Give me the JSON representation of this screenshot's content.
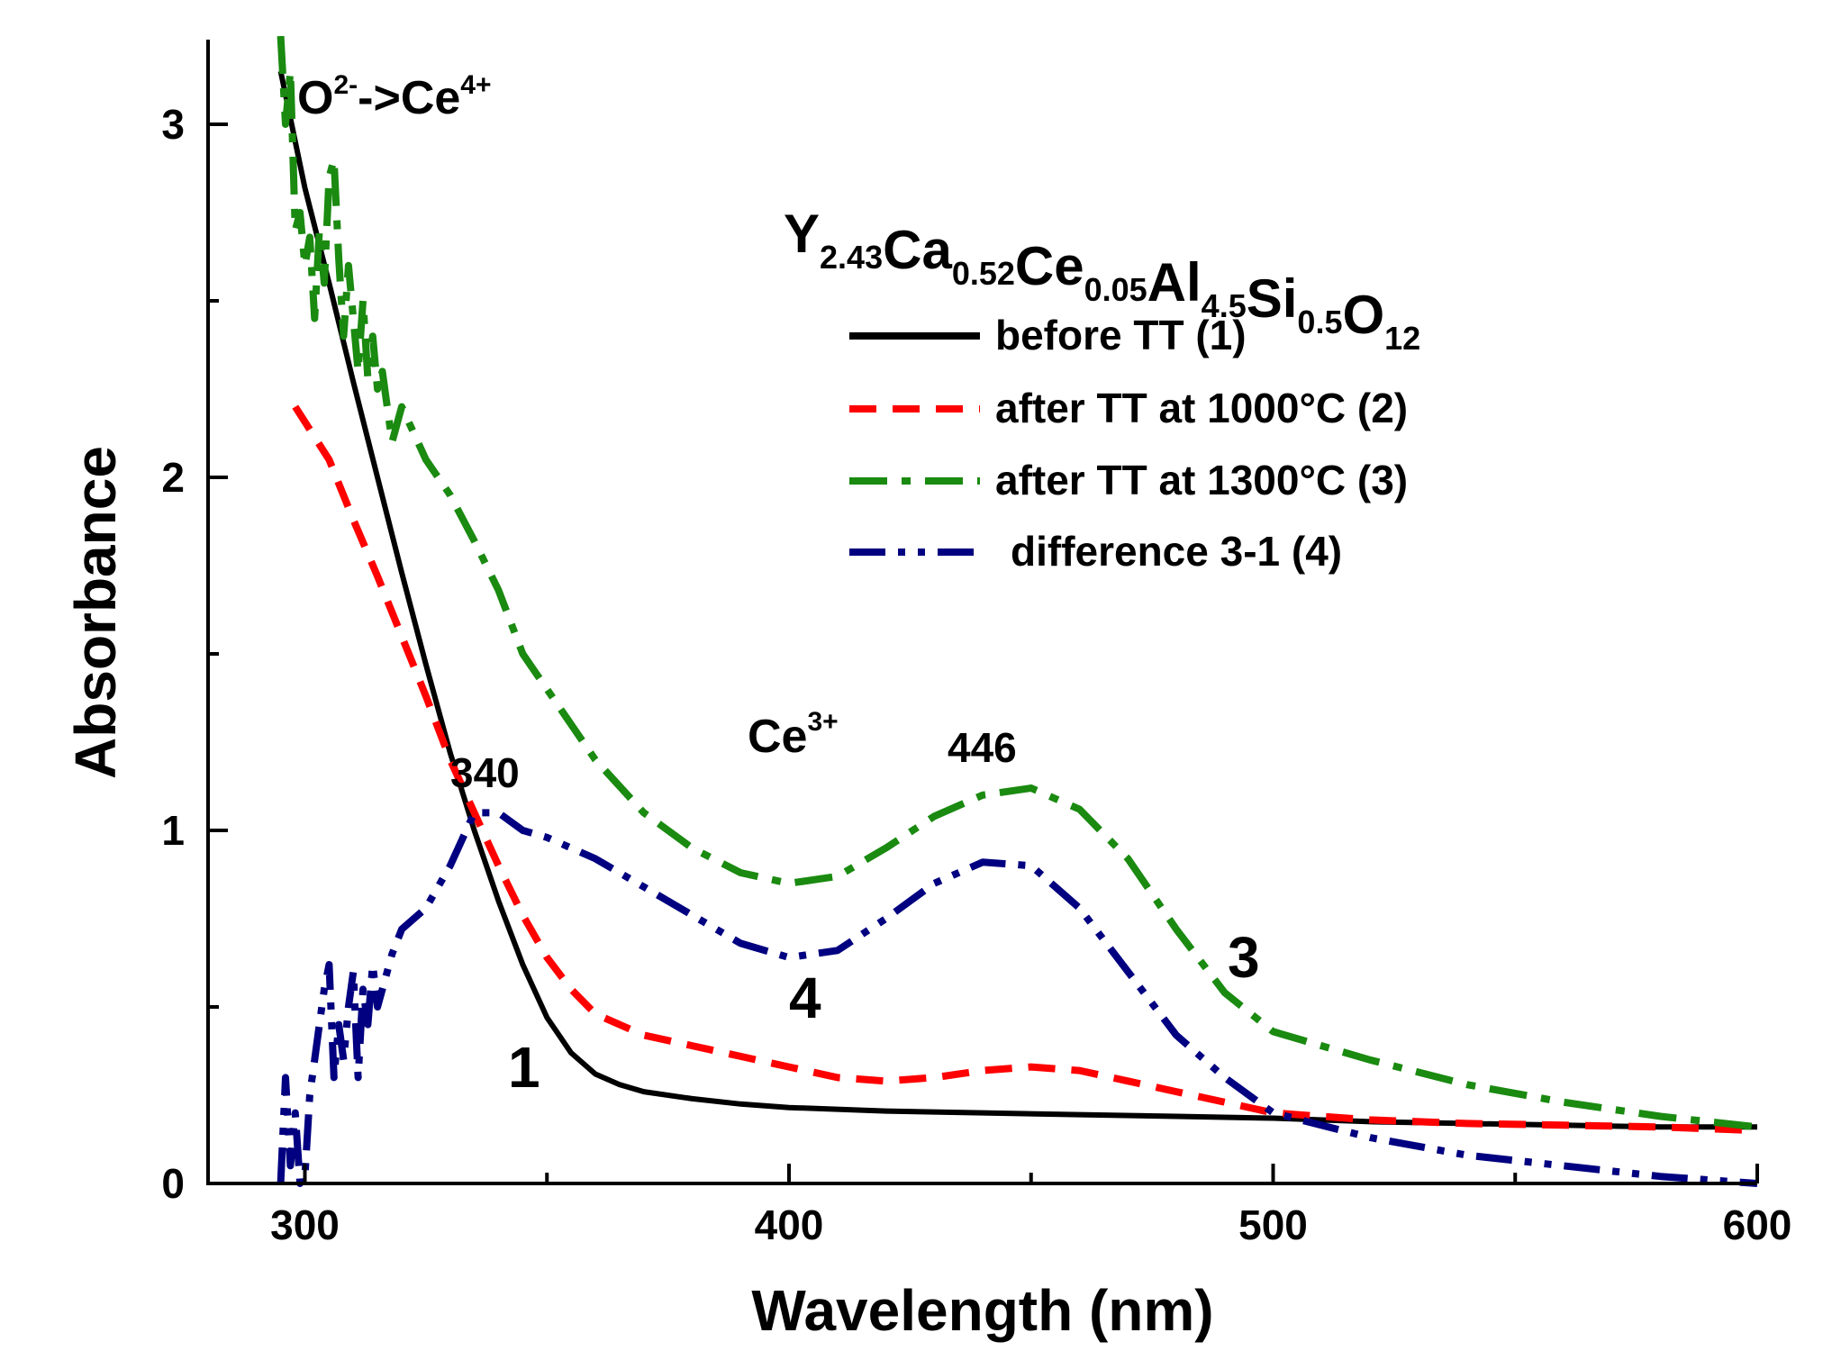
{
  "colors": {
    "series1": "#000000",
    "series2": "#ff0000",
    "series3": "#1a8a10",
    "series4": "#000080",
    "axis": "#000000",
    "background": "#ffffff"
  },
  "chart_data": {
    "type": "line",
    "xlabel": "Wavelength (nm)",
    "ylabel": "Absorbance",
    "xlim": [
      280,
      600
    ],
    "ylim": [
      0,
      3.25
    ],
    "x_ticks": [
      300,
      400,
      500,
      600
    ],
    "x_minor_ticks": [
      350,
      450,
      550
    ],
    "y_ticks": [
      0,
      1,
      2,
      3
    ],
    "y_minor_ticks": [
      0.5,
      1.5,
      2.5
    ],
    "grid": false,
    "legend_position": "top-right",
    "composition": [
      {
        "base": "Y",
        "sub": "2.43"
      },
      {
        "base": "Ca",
        "sub": "0.52"
      },
      {
        "base": "Ce",
        "sub": "0.05"
      },
      {
        "base": "Al",
        "sub": "4.5"
      },
      {
        "base": "Si",
        "sub": "0.5"
      },
      {
        "base": "O",
        "sub": "12"
      }
    ],
    "annotations": {
      "charge_transfer": {
        "base1": "O",
        "sup1": "2-",
        "mid": "->Ce",
        "sup2": "4+"
      },
      "ce3": {
        "base": "Ce",
        "sup": "3+"
      },
      "peak_340": "340",
      "peak_446": "446"
    },
    "series": [
      {
        "name": "before TT (1)",
        "curve_label": "1",
        "style": "solid",
        "x": [
          295,
          300,
          305,
          310,
          315,
          320,
          325,
          330,
          335,
          340,
          345,
          350,
          355,
          360,
          365,
          370,
          380,
          390,
          400,
          420,
          440,
          460,
          480,
          500,
          520,
          540,
          560,
          580,
          600
        ],
        "y": [
          3.15,
          2.82,
          2.55,
          2.27,
          2.0,
          1.73,
          1.47,
          1.22,
          1.0,
          0.8,
          0.62,
          0.47,
          0.37,
          0.31,
          0.28,
          0.26,
          0.24,
          0.225,
          0.215,
          0.205,
          0.2,
          0.195,
          0.19,
          0.185,
          0.175,
          0.17,
          0.165,
          0.16,
          0.16
        ]
      },
      {
        "name": "after TT at 1000°C (2)",
        "curve_label": "",
        "style": "dashed",
        "x": [
          298,
          305,
          310,
          315,
          320,
          325,
          330,
          335,
          340,
          345,
          350,
          355,
          360,
          370,
          380,
          390,
          400,
          410,
          420,
          430,
          440,
          450,
          460,
          470,
          480,
          490,
          500,
          520,
          540,
          560,
          580,
          600
        ],
        "y": [
          2.2,
          2.05,
          1.88,
          1.72,
          1.55,
          1.38,
          1.2,
          1.05,
          0.9,
          0.76,
          0.64,
          0.55,
          0.48,
          0.42,
          0.39,
          0.36,
          0.33,
          0.3,
          0.29,
          0.3,
          0.32,
          0.33,
          0.32,
          0.29,
          0.26,
          0.23,
          0.2,
          0.18,
          0.17,
          0.165,
          0.16,
          0.15
        ]
      },
      {
        "name": "after TT at 1300°C (3)",
        "curve_label": "3",
        "style": "dashdot",
        "x": [
          295,
          296,
          297,
          298,
          299,
          300,
          301,
          302,
          303,
          304,
          305,
          306,
          307,
          308,
          309,
          310,
          311,
          312,
          313,
          314,
          315,
          316,
          318,
          320,
          325,
          330,
          335,
          340,
          345,
          350,
          360,
          370,
          380,
          390,
          400,
          410,
          420,
          430,
          440,
          450,
          460,
          470,
          480,
          490,
          500,
          520,
          540,
          560,
          580,
          600
        ],
        "y": [
          3.25,
          3.0,
          3.15,
          2.7,
          2.75,
          2.6,
          2.68,
          2.45,
          2.7,
          2.55,
          2.85,
          2.9,
          2.62,
          2.4,
          2.6,
          2.45,
          2.3,
          2.5,
          2.28,
          2.4,
          2.25,
          2.3,
          2.1,
          2.2,
          2.05,
          1.95,
          1.82,
          1.68,
          1.5,
          1.4,
          1.2,
          1.05,
          0.95,
          0.88,
          0.85,
          0.87,
          0.95,
          1.04,
          1.1,
          1.12,
          1.06,
          0.92,
          0.72,
          0.54,
          0.43,
          0.35,
          0.28,
          0.23,
          0.19,
          0.16
        ]
      },
      {
        "name": "difference 3-1 (4)",
        "curve_label": "4",
        "style": "dashdotdot",
        "x": [
          295,
          296,
          297,
          298,
          299,
          300,
          301,
          302,
          303,
          304,
          305,
          306,
          307,
          308,
          309,
          310,
          311,
          312,
          313,
          314,
          315,
          316,
          318,
          320,
          325,
          330,
          335,
          340,
          345,
          350,
          360,
          370,
          380,
          390,
          400,
          410,
          420,
          430,
          440,
          450,
          460,
          470,
          480,
          490,
          500,
          520,
          540,
          560,
          580,
          600
        ],
        "y": [
          0.0,
          0.3,
          0.05,
          0.2,
          0.0,
          0.02,
          0.25,
          0.35,
          0.45,
          0.55,
          0.62,
          0.3,
          0.45,
          0.35,
          0.5,
          0.6,
          0.3,
          0.55,
          0.45,
          0.62,
          0.5,
          0.55,
          0.65,
          0.72,
          0.78,
          0.9,
          1.05,
          1.05,
          1.0,
          0.98,
          0.92,
          0.84,
          0.76,
          0.68,
          0.64,
          0.66,
          0.75,
          0.85,
          0.91,
          0.9,
          0.78,
          0.6,
          0.42,
          0.3,
          0.2,
          0.13,
          0.08,
          0.05,
          0.02,
          0.0
        ]
      }
    ]
  }
}
